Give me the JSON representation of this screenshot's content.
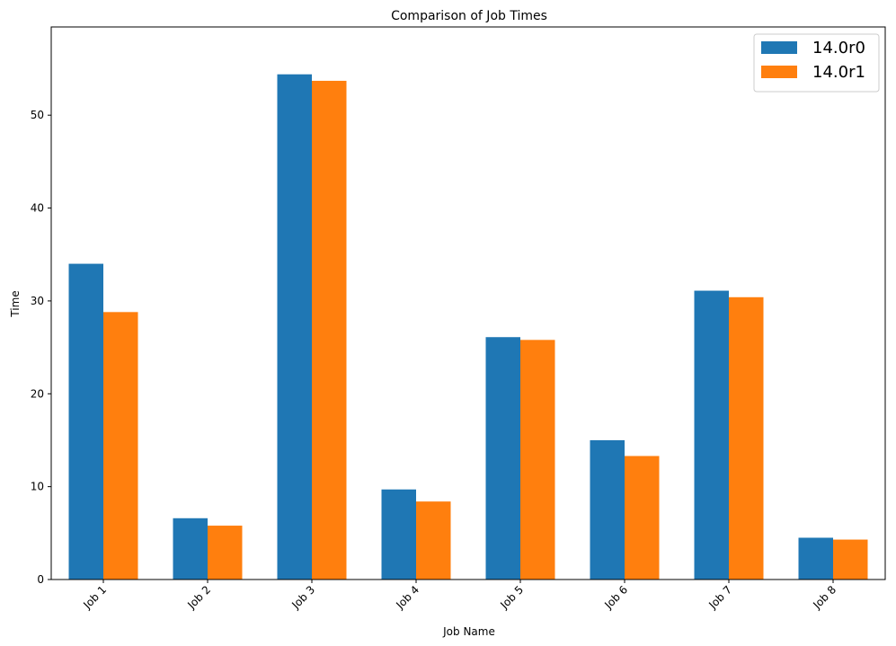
{
  "chart_data": {
    "type": "bar",
    "title": "Comparison of Job Times",
    "xlabel": "Job Name",
    "ylabel": "Time",
    "categories": [
      "Job 1",
      "Job 2",
      "Job 3",
      "Job 4",
      "Job 5",
      "Job 6",
      "Job 7",
      "Job 8"
    ],
    "series": [
      {
        "name": "14.0r0",
        "color": "#1f77b4",
        "values": [
          34.0,
          6.6,
          54.4,
          9.7,
          26.1,
          15.0,
          31.1,
          4.5
        ]
      },
      {
        "name": "14.0r1",
        "color": "#ff7f0e",
        "values": [
          28.8,
          5.8,
          53.7,
          8.4,
          25.8,
          13.3,
          30.4,
          4.3
        ]
      }
    ],
    "ylim": [
      0,
      59.5
    ],
    "yticks": [
      0,
      10,
      20,
      30,
      40,
      50
    ],
    "grid": false,
    "legend_position": "top-right"
  }
}
